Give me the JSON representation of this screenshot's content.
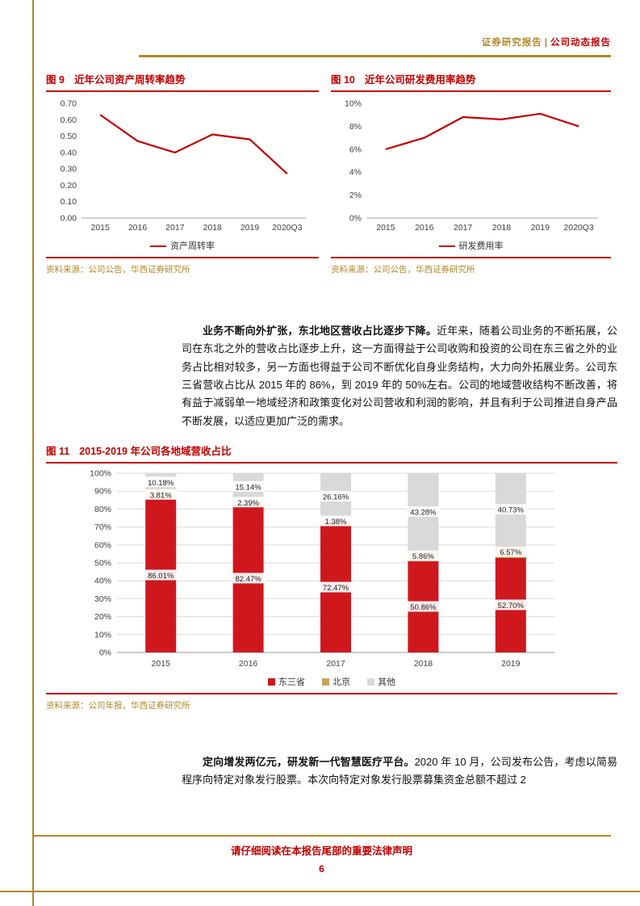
{
  "colors": {
    "gold": "#B0882B",
    "red": "#C00000",
    "axis_text": "#404040",
    "bar_red": "#CE181E",
    "bar_gold": "#C9A158",
    "bar_gray": "#D9D9D9"
  },
  "header": {
    "left": "证券研究报告",
    "sep": "|",
    "right": "公司动态报告"
  },
  "fig9": {
    "label": "图 9",
    "title": "近年公司资产周转率趋势",
    "legend": "资产周转率",
    "source": "资料来源：公司公告，华西证券研究所"
  },
  "fig10": {
    "label": "图 10",
    "title": "近年公司研发费用率趋势",
    "legend": "研发费用率",
    "source": "资料来源：公司公告，华西证券研究所"
  },
  "fig11": {
    "label": "图 11",
    "title": "2015-2019 年公司各地域营收占比",
    "source": "资料来源：公司年报，华西证券研究所"
  },
  "paragraphs": {
    "p1_bold": "业务不断向外扩张，东北地区营收占比逐步下降。",
    "p1_text": "近年来，随着公司业务的不断拓展，公司在东北之外的营收占比逐步上升，这一方面得益于公司收购和投资的公司在东三省之外的业务占比相对较多，另一方面也得益于公司不断优化自身业务结构，大力向外拓展业务。公司东三省营收占比从 2015 年的 86%，到 2019 年的 50%左右。公司的地域营收结构不断改善，将有益于减弱单一地域经济和政策变化对公司营收和利润的影响，并且有利于公司推进自身产品不断发展，以适应更加广泛的需求。",
    "p2_bold": "定向增发两亿元，研发新一代智慧医疗平台。",
    "p2_text": "2020 年 10 月，公司发布公告，考虑以简易程序向特定对象发行股票。本次向特定对象发行股票募集资金总额不超过 2"
  },
  "footer": {
    "notice": "请仔细阅读在本报告尾部的重要法律声明",
    "page_number": "6"
  },
  "chart_data": [
    {
      "type": "line",
      "title": "近年公司资产周转率趋势",
      "categories": [
        "2015",
        "2016",
        "2017",
        "2018",
        "2019",
        "2020Q3"
      ],
      "values": [
        0.63,
        0.47,
        0.4,
        0.51,
        0.48,
        0.27
      ],
      "ylim": [
        0,
        0.7
      ],
      "ystep": 0.1,
      "percent": false,
      "legend": "资产周转率",
      "color": "#C00000",
      "grid": false,
      "legend_position": "bottom"
    },
    {
      "type": "line",
      "title": "近年公司研发费用率趋势",
      "categories": [
        "2015",
        "2016",
        "2017",
        "2018",
        "2019",
        "2020Q3"
      ],
      "values": [
        6.0,
        7.0,
        8.8,
        8.6,
        9.1,
        8.0
      ],
      "ylim": [
        0,
        10
      ],
      "ystep": 2,
      "percent": true,
      "legend": "研发费用率",
      "color": "#C00000",
      "grid": false,
      "legend_position": "bottom"
    },
    {
      "type": "stacked-bar",
      "title": "2015-2019 年公司各地域营收占比",
      "categories": [
        "2015",
        "2016",
        "2017",
        "2018",
        "2019"
      ],
      "series": [
        {
          "name": "东三省",
          "color": "#CE181E",
          "values": [
            86.01,
            82.47,
            72.47,
            50.86,
            52.7
          ]
        },
        {
          "name": "北京",
          "color": "#C9A158",
          "values": [
            3.81,
            2.39,
            1.38,
            5.86,
            6.57
          ]
        },
        {
          "name": "其他",
          "color": "#D9D9D9",
          "values": [
            10.18,
            15.14,
            26.16,
            43.28,
            40.73
          ]
        }
      ],
      "ylim": [
        0,
        100
      ],
      "ystep": 10,
      "grid": true,
      "legend_position": "bottom"
    }
  ]
}
